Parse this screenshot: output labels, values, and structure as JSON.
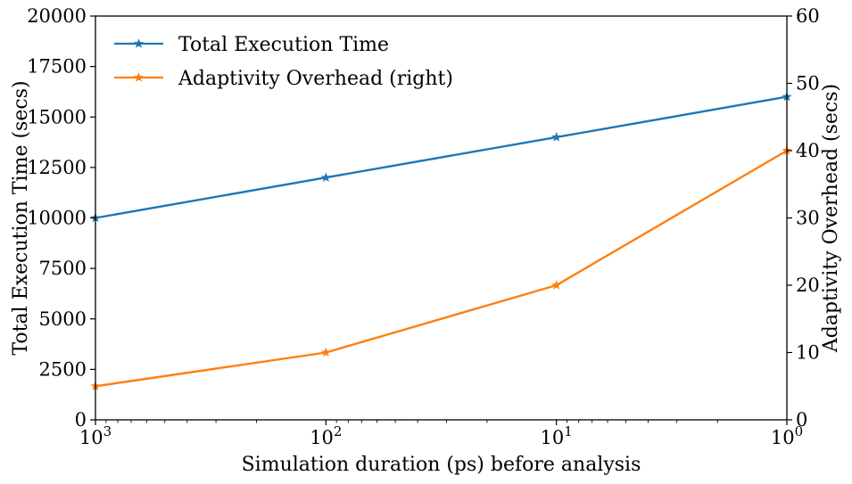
{
  "chart_data": {
    "type": "line",
    "x": [
      1000,
      100,
      10,
      1
    ],
    "xscale": "log",
    "xdirection": "reversed",
    "xlim": [
      1000,
      1
    ],
    "x_tick_labels": [
      "10^3",
      "10^2",
      "10^1",
      "10^0"
    ],
    "xlabel": "Simulation duration (ps) before analysis",
    "ylabel": "Total Execution Time (secs)",
    "ylim": [
      0,
      20000
    ],
    "y_ticks": [
      "0",
      "2500",
      "5000",
      "7500",
      "10000",
      "12500",
      "15000",
      "17500",
      "20000"
    ],
    "y2label": "Adaptivity Overhead (secs)",
    "y2lim": [
      0,
      60
    ],
    "y2_ticks": [
      "0",
      "10",
      "20",
      "30",
      "40",
      "50",
      "60"
    ],
    "legend_position": "top-left",
    "grid": false,
    "marker": "star",
    "series": [
      {
        "name": "Total Execution Time",
        "axis": "left",
        "color": "#1f77b4",
        "values": [
          10000,
          12000,
          14000,
          16000
        ]
      },
      {
        "name": "Adaptivity Overhead (right)",
        "axis": "right",
        "color": "#ff7f0e",
        "values": [
          5,
          10,
          20,
          40
        ]
      }
    ]
  }
}
